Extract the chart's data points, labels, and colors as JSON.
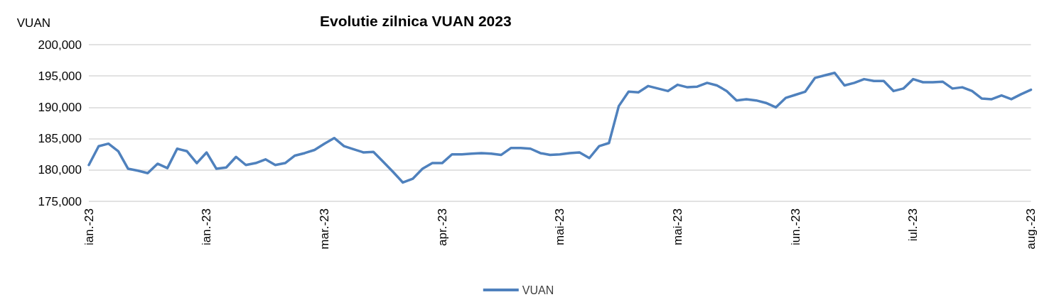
{
  "chart_data": {
    "type": "line",
    "title": "Evolutie zilnica VUAN 2023",
    "ylabel": "VUAN",
    "categories": [
      "ian.-23",
      null,
      null,
      null,
      null,
      null,
      null,
      null,
      null,
      null,
      null,
      null,
      "ian.-23",
      null,
      null,
      null,
      null,
      null,
      null,
      null,
      null,
      null,
      null,
      null,
      "mar.-23",
      null,
      null,
      null,
      null,
      null,
      null,
      null,
      null,
      null,
      null,
      null,
      "apr.-23",
      null,
      null,
      null,
      null,
      null,
      null,
      null,
      null,
      null,
      null,
      null,
      "mai-23",
      null,
      null,
      null,
      null,
      null,
      null,
      null,
      null,
      null,
      null,
      null,
      "mai-23",
      null,
      null,
      null,
      null,
      null,
      null,
      null,
      null,
      null,
      null,
      null,
      "iun.-23",
      null,
      null,
      null,
      null,
      null,
      null,
      null,
      null,
      null,
      null,
      null,
      "iul.-23",
      null,
      null,
      null,
      null,
      null,
      null,
      null,
      null,
      null,
      null,
      null,
      "aug.-23"
    ],
    "series": [
      {
        "name": "VUAN",
        "color": "#4f81bd",
        "values": [
          180800,
          183800,
          184200,
          183000,
          180200,
          179900,
          179500,
          181000,
          180300,
          183400,
          183000,
          181100,
          182800,
          180200,
          180400,
          182100,
          180800,
          181100,
          181700,
          180800,
          181100,
          182300,
          182700,
          183200,
          184200,
          185100,
          183800,
          183300,
          182800,
          182900,
          181300,
          179700,
          178000,
          178600,
          180200,
          181100,
          181100,
          182500,
          182500,
          182600,
          182700,
          182600,
          182400,
          183500,
          183500,
          183400,
          182700,
          182400,
          182500,
          182700,
          182800,
          181900,
          183800,
          184300,
          190200,
          192500,
          192400,
          193400,
          193000,
          192600,
          193600,
          193200,
          193300,
          193900,
          193500,
          192600,
          191100,
          191300,
          191100,
          190700,
          190000,
          191500,
          192000,
          192500,
          194700,
          195100,
          195500,
          193500,
          193900,
          194500,
          194200,
          194200,
          192600,
          193000,
          194500,
          194000,
          194000,
          194100,
          193000,
          193200,
          192600,
          191400,
          191300,
          191900,
          191300,
          192100,
          192800
        ]
      }
    ],
    "ylim": [
      175000,
      200000
    ],
    "yticks": [
      {
        "value": 175000,
        "label": "175,000"
      },
      {
        "value": 180000,
        "label": "180,000"
      },
      {
        "value": 185000,
        "label": "185,000"
      },
      {
        "value": 190000,
        "label": "190,000"
      },
      {
        "value": 195000,
        "label": "195,000"
      },
      {
        "value": 200000,
        "label": "200,000"
      }
    ],
    "grid": "y",
    "legend": "bottom",
    "marker": "none",
    "line_style": "solid"
  }
}
